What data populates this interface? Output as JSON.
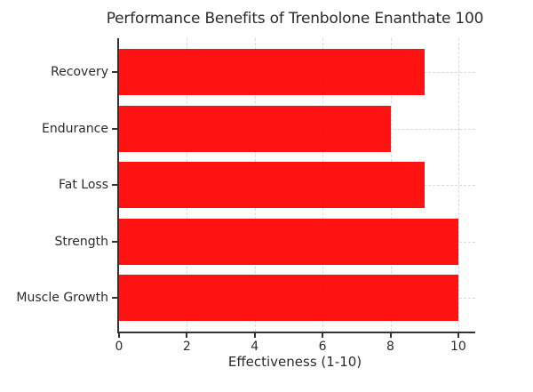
{
  "chart_data": {
    "type": "bar",
    "orientation": "horizontal",
    "title": "Performance Benefits of Trenbolone Enanthate 100",
    "xlabel": "Effectiveness (1-10)",
    "categories": [
      "Recovery",
      "Endurance",
      "Fat Loss",
      "Strength",
      "Muscle Growth"
    ],
    "values": [
      9,
      8,
      9,
      10,
      10
    ],
    "xlim": [
      0,
      10.5
    ],
    "xticks": [
      0,
      2,
      4,
      6,
      8,
      10
    ],
    "grid": true,
    "legend": false,
    "bar_color": "#ff0000",
    "grid_color": "#d9d9d9",
    "axis_color": "#333333",
    "text_color": "#2b2b2b",
    "background": "#ffffff"
  }
}
